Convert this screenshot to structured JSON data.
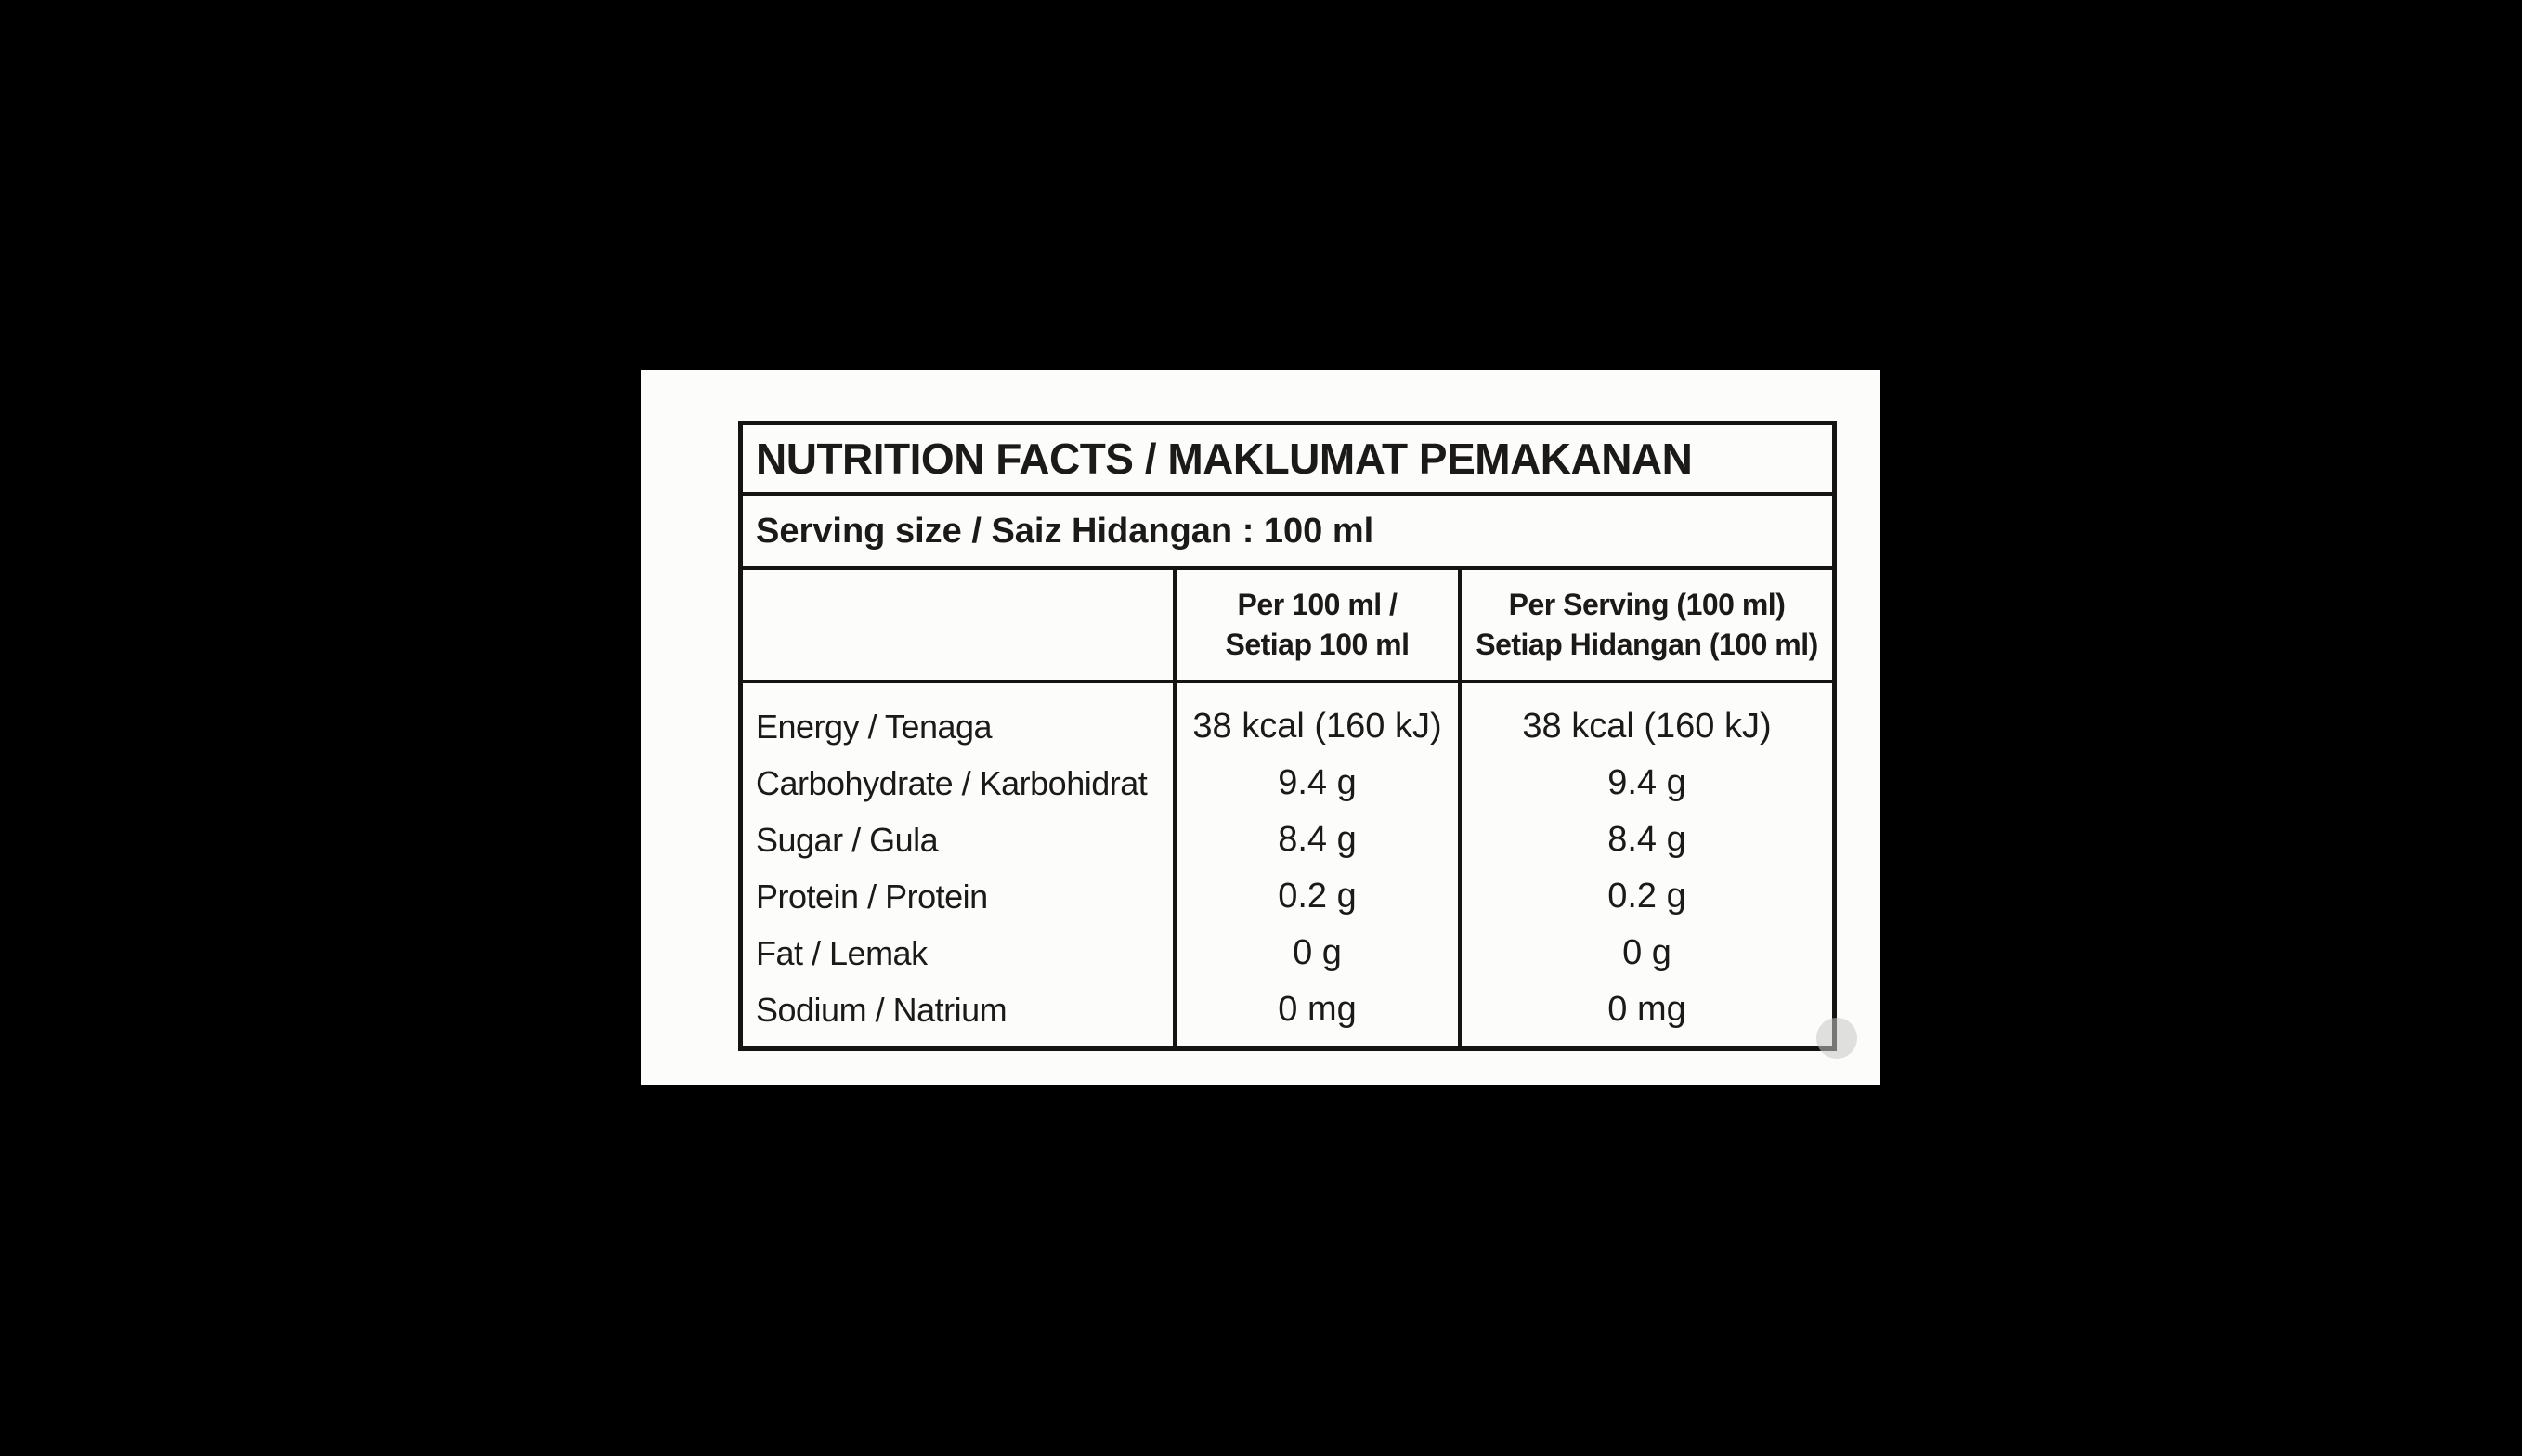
{
  "page": {
    "background_color": "#000000",
    "card_color": "#fcfcfa",
    "border_color": "#161412",
    "text_color": "#1c1a19"
  },
  "table": {
    "title": "NUTRITION FACTS / MAKLUMAT PEMAKANAN",
    "serving_line": "Serving size / Saiz Hidangan : 100 ml",
    "column_headers": [
      {
        "line1": "Per 100 ml /",
        "line2": "Setiap 100 ml"
      },
      {
        "line1": "Per Serving (100 ml)",
        "line2": "Setiap Hidangan (100 ml)"
      }
    ],
    "rows": [
      {
        "label": "Energy / Tenaga",
        "per_100ml": "38 kcal (160 kJ)",
        "per_serving": "38 kcal (160 kJ)"
      },
      {
        "label": "Carbohydrate / Karbohidrat",
        "per_100ml": "9.4 g",
        "per_serving": "9.4 g"
      },
      {
        "label": "Sugar / Gula",
        "per_100ml": "8.4 g",
        "per_serving": "8.4 g"
      },
      {
        "label": "Protein / Protein",
        "per_100ml": "0.2 g",
        "per_serving": "0.2 g"
      },
      {
        "label": "Fat / Lemak",
        "per_100ml": "0 g",
        "per_serving": "0 g"
      },
      {
        "label": "Sodium / Natrium",
        "per_100ml": "0 mg",
        "per_serving": "0 mg"
      }
    ]
  }
}
